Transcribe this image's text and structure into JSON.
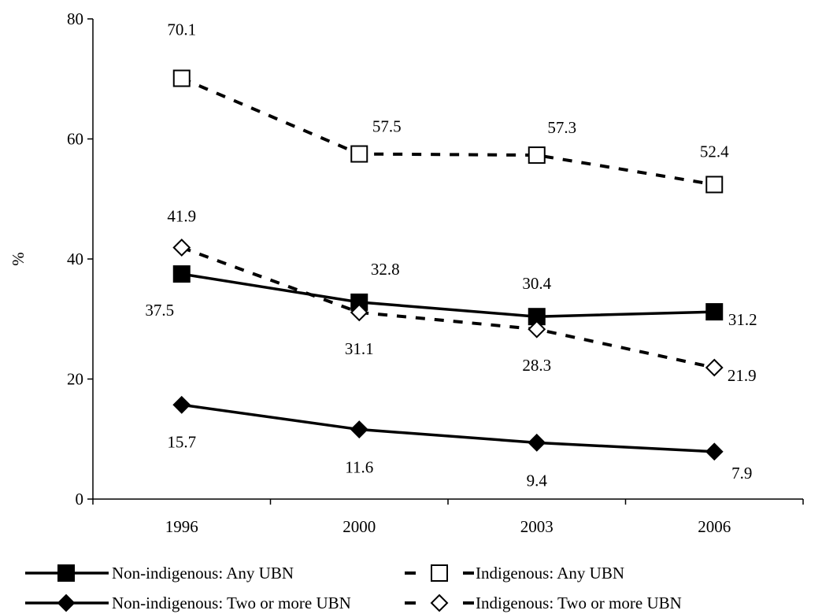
{
  "chart_data": {
    "type": "line",
    "categories": [
      "1996",
      "2000",
      "2003",
      "2006"
    ],
    "ylabel": "%",
    "xlabel": "",
    "title": "",
    "ylim": [
      0,
      80
    ],
    "yticks": [
      0,
      20,
      40,
      60,
      80
    ],
    "grid": false,
    "legend_position": "bottom",
    "series": [
      {
        "name": "Non-indigenous: Any UBN",
        "values": [
          37.5,
          32.8,
          30.4,
          31.2
        ],
        "labels": [
          "37.5",
          "32.8",
          "30.4",
          "31.2"
        ],
        "line_style": "solid",
        "marker": "filled-square",
        "color": "#000000"
      },
      {
        "name": "Indigenous: Any UBN",
        "values": [
          70.1,
          57.5,
          57.3,
          52.4
        ],
        "labels": [
          "70.1",
          "57.5",
          "57.3",
          "52.4"
        ],
        "line_style": "dashed",
        "marker": "open-square",
        "color": "#000000"
      },
      {
        "name": "Non-indigenous: Two or more UBN",
        "values": [
          15.7,
          11.6,
          9.4,
          7.9
        ],
        "labels": [
          "15.7",
          "11.6",
          "9.4",
          "7.9"
        ],
        "line_style": "solid",
        "marker": "filled-diamond",
        "color": "#000000"
      },
      {
        "name": "Indigenous: Two or more UBN",
        "values": [
          41.9,
          31.1,
          28.3,
          21.9
        ],
        "labels": [
          "41.9",
          "31.1",
          "28.3",
          "21.9"
        ],
        "line_style": "dashed",
        "marker": "open-diamond",
        "color": "#000000"
      }
    ]
  }
}
